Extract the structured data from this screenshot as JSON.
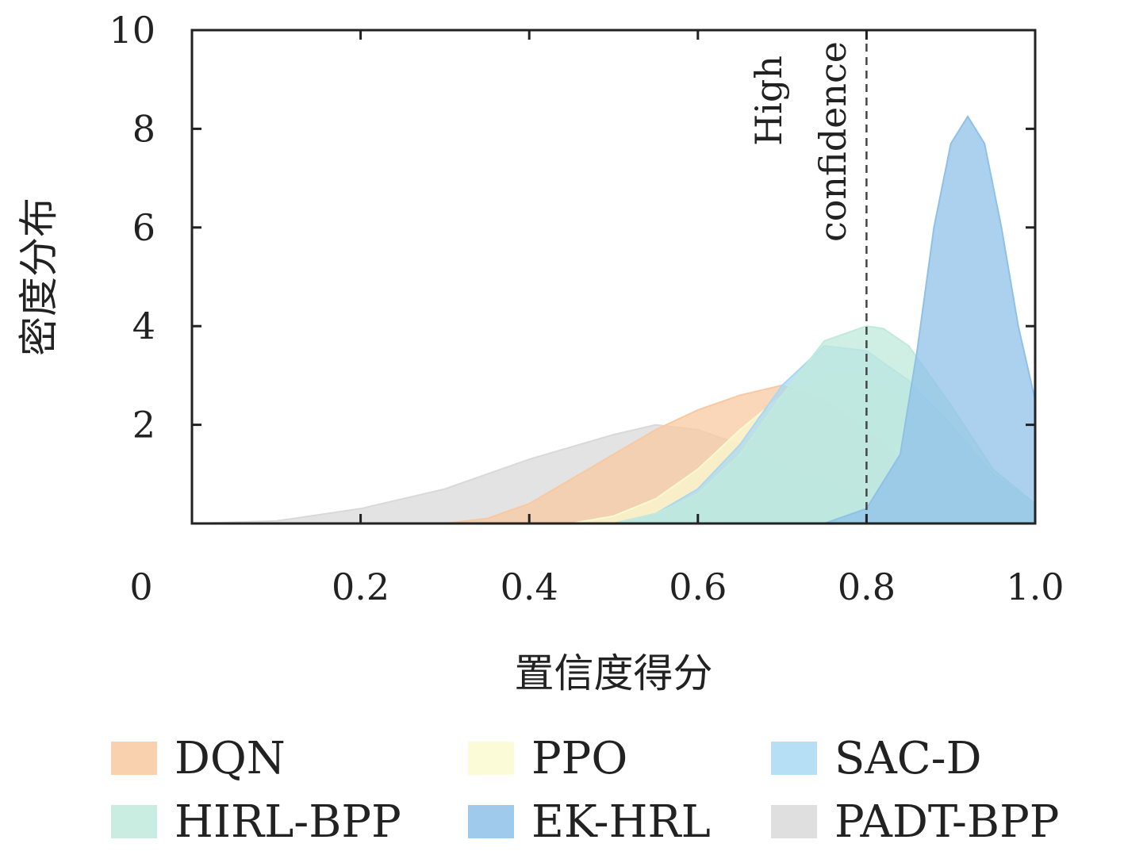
{
  "chart_data": {
    "type": "area",
    "xlabel": "置信度得分",
    "ylabel": "密度分布",
    "xlim": [
      0,
      1.0
    ],
    "ylim": [
      0,
      10
    ],
    "xticks": [
      0,
      0.2,
      0.4,
      0.6,
      0.8,
      1.0
    ],
    "xtick_labels": [
      "0",
      "0.2",
      "0.4",
      "0.6",
      "0.8",
      "1.0"
    ],
    "yticks": [
      2,
      4,
      6,
      8,
      10
    ],
    "ytick_labels": [
      "2",
      "4",
      "6",
      "8",
      "10"
    ],
    "grid": false,
    "legend_position": "bottom",
    "annotation": {
      "x": 0.8,
      "style": "dashed",
      "lines": [
        "High",
        "confidence"
      ]
    },
    "series": [
      {
        "name": "PADT-BPP",
        "color": "#d9d9d9",
        "x": [
          0,
          0.1,
          0.2,
          0.3,
          0.4,
          0.5,
          0.55,
          0.6,
          0.65,
          0.7,
          0.75,
          0.8,
          0.85,
          0.9,
          0.95,
          1.0
        ],
        "y": [
          0,
          0.05,
          0.3,
          0.7,
          1.3,
          1.8,
          2.0,
          1.9,
          1.6,
          1.2,
          0.9,
          0.6,
          0.4,
          0.2,
          0.08,
          0.03
        ]
      },
      {
        "name": "DQN",
        "color": "#f8c9a0",
        "x": [
          0.3,
          0.35,
          0.4,
          0.45,
          0.5,
          0.55,
          0.6,
          0.65,
          0.7,
          0.75,
          0.8,
          0.85,
          0.9,
          0.95,
          1.0
        ],
        "y": [
          0,
          0.1,
          0.4,
          0.9,
          1.4,
          1.9,
          2.3,
          2.6,
          2.8,
          2.5,
          1.9,
          1.2,
          0.6,
          0.25,
          0.08
        ]
      },
      {
        "name": "PPO",
        "color": "#fafad0",
        "x": [
          0.45,
          0.5,
          0.55,
          0.6,
          0.65,
          0.7,
          0.75,
          0.8,
          0.85,
          0.9,
          0.95,
          1.0
        ],
        "y": [
          0,
          0.15,
          0.5,
          1.1,
          1.9,
          2.6,
          3.0,
          3.0,
          2.5,
          1.6,
          0.8,
          0.3
        ]
      },
      {
        "name": "SAC-D",
        "color": "#a9d8f2",
        "x": [
          0.5,
          0.55,
          0.6,
          0.65,
          0.7,
          0.75,
          0.8,
          0.85,
          0.9,
          0.95,
          1.0
        ],
        "y": [
          0,
          0.2,
          0.7,
          1.6,
          2.8,
          3.6,
          3.5,
          2.9,
          2.0,
          1.0,
          0.4
        ]
      },
      {
        "name": "HIRL-BPP",
        "color": "#bfeadc",
        "x": [
          0.5,
          0.55,
          0.6,
          0.65,
          0.7,
          0.75,
          0.8,
          0.82,
          0.85,
          0.9,
          0.95,
          1.0
        ],
        "y": [
          0,
          0.2,
          0.6,
          1.4,
          2.6,
          3.7,
          4.0,
          3.95,
          3.6,
          2.4,
          1.1,
          0.4
        ]
      },
      {
        "name": "EK-HRL",
        "color": "#8fc1e8",
        "x": [
          0.75,
          0.8,
          0.84,
          0.86,
          0.88,
          0.9,
          0.92,
          0.94,
          0.96,
          0.98,
          1.0
        ],
        "y": [
          0,
          0.3,
          1.4,
          3.5,
          6.0,
          7.7,
          8.25,
          7.7,
          6.0,
          4.0,
          2.5
        ]
      }
    ]
  }
}
